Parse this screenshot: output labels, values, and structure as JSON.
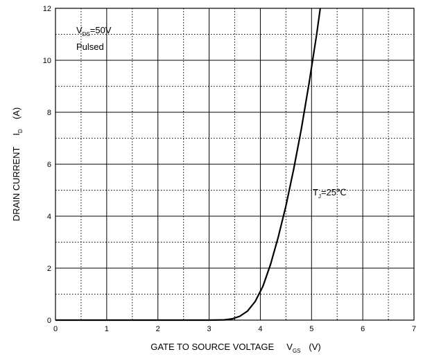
{
  "chart_data": {
    "type": "line",
    "title": "",
    "xlabel": {
      "main": "GATE TO SOURCE VOLTAGE",
      "symbol": "V",
      "subscript": "GS",
      "unit": "(V)"
    },
    "ylabel": {
      "main": "DRAIN CURRENT",
      "symbol": "I",
      "subscript": "D",
      "unit": "(A)"
    },
    "xlim": [
      0,
      7
    ],
    "ylim": [
      0,
      12
    ],
    "xticks": [
      0,
      1,
      2,
      3,
      4,
      5,
      6,
      7
    ],
    "yticks": [
      0,
      2,
      4,
      6,
      8,
      10,
      12
    ],
    "x_minor_step": 0.5,
    "y_minor_step": 1,
    "grid": {
      "major": "solid",
      "minor": "dotted"
    },
    "annotations": {
      "conditions": {
        "symbol": "V",
        "subscript": "DS",
        "value": "=50V",
        "line2": "Pulsed"
      },
      "temperature": {
        "symbol": "T",
        "subscript": "J",
        "value": "=25℃"
      }
    },
    "series": [
      {
        "color": "#000000",
        "x": [
          0,
          3.0,
          3.3,
          3.45,
          3.6,
          3.75,
          3.9,
          4.05,
          4.2,
          4.35,
          4.5,
          4.65,
          4.8,
          4.95,
          5.1,
          5.17
        ],
        "y": [
          0,
          0,
          0.01,
          0.05,
          0.15,
          0.35,
          0.72,
          1.3,
          2.15,
          3.2,
          4.4,
          5.8,
          7.35,
          9.1,
          11.0,
          12.0
        ]
      }
    ]
  }
}
